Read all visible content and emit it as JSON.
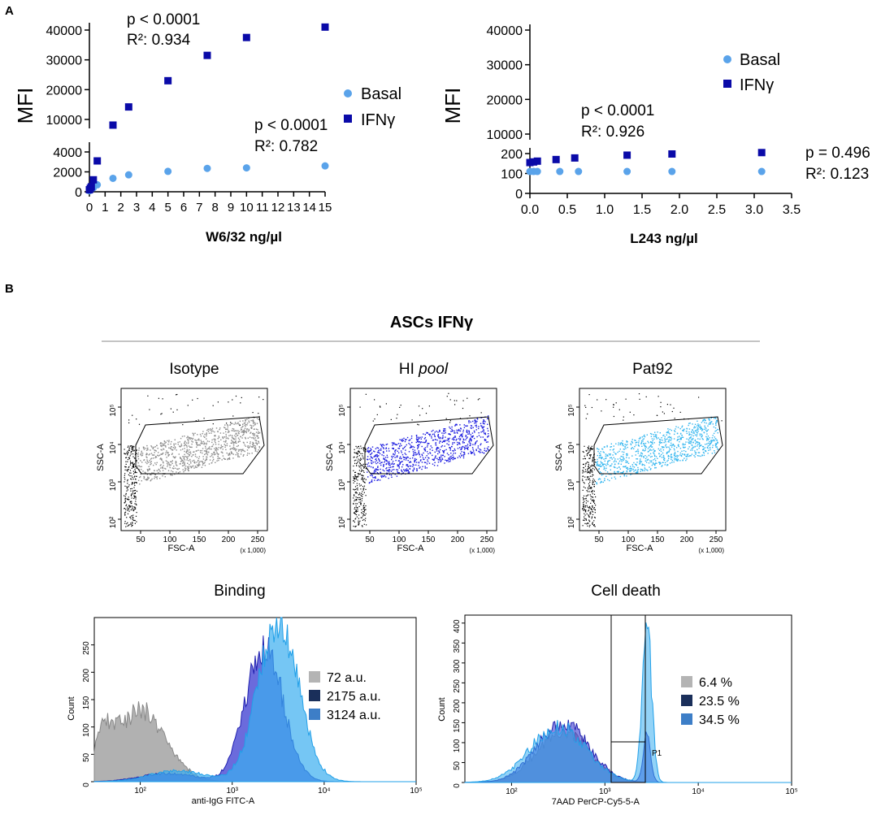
{
  "panels": {
    "a": "A",
    "b": "B"
  },
  "chart_data": [
    {
      "id": "w632",
      "type": "scatter",
      "title": "",
      "xlabel": "W6/32 ng/µl",
      "ylabel": "MFI",
      "x_ticks": [
        "0",
        "1",
        "2",
        "3",
        "4",
        "5",
        "6",
        "7",
        "8",
        "9",
        "10",
        "11",
        "12",
        "13",
        "14",
        "15"
      ],
      "y_ticks_lower": [
        "0",
        "2000",
        "4000"
      ],
      "y_ticks_upper": [
        "10000",
        "20000",
        "30000",
        "40000"
      ],
      "y_break": [
        4000,
        8000
      ],
      "xlim": [
        0,
        15
      ],
      "series": [
        {
          "name": "Basal",
          "color": "#5aa3ea",
          "marker": "circle",
          "x": [
            0,
            0.06,
            0.12,
            0.25,
            0.5,
            1.5,
            2.5,
            5,
            7.5,
            10,
            15
          ],
          "y": [
            100,
            200,
            300,
            400,
            700,
            1350,
            1700,
            2050,
            2350,
            2400,
            2600
          ]
        },
        {
          "name": "IFNγ",
          "color": "#0a0aa8",
          "marker": "square",
          "x": [
            0,
            0.06,
            0.12,
            0.25,
            0.5,
            1.5,
            2.5,
            5,
            7.5,
            10,
            15
          ],
          "y": [
            200,
            350,
            500,
            1200,
            3100,
            8100,
            14200,
            23000,
            31500,
            37500,
            41000
          ]
        }
      ],
      "annotations": {
        "ifn_p": "p < 0.0001",
        "ifn_r2": "R²: 0.934",
        "basal_p": "p < 0.0001",
        "basal_r2": "R²: 0.782"
      }
    },
    {
      "id": "l243",
      "type": "scatter",
      "title": "",
      "xlabel": "L243 ng/µl",
      "ylabel": "MFI",
      "x_ticks": [
        "0.0",
        "0.5",
        "1.0",
        "1.5",
        "2.0",
        "2.5",
        "3.0",
        "3.5"
      ],
      "y_ticks_lower": [
        "0",
        "100",
        "200"
      ],
      "y_ticks_upper": [
        "10000",
        "20000",
        "30000",
        "40000"
      ],
      "xlim": [
        0,
        3.5
      ],
      "series": [
        {
          "name": "Basal",
          "color": "#5aa3ea",
          "marker": "circle",
          "x": [
            0,
            0.05,
            0.1,
            0.4,
            0.65,
            1.3,
            1.9,
            3.1
          ],
          "y": [
            110,
            110,
            110,
            110,
            110,
            110,
            110,
            110
          ]
        },
        {
          "name": "IFNγ",
          "color": "#0a0aa8",
          "marker": "square",
          "x": [
            0,
            0.05,
            0.1,
            0.35,
            0.6,
            1.3,
            1.9,
            3.1
          ],
          "y": [
            155,
            158,
            162,
            170,
            178,
            192,
            198,
            205
          ]
        }
      ],
      "annotations": {
        "ifn_p": "p < 0.0001",
        "ifn_r2": "R²: 0.926",
        "basal_p": "p = 0.496",
        "basal_r2": "R²: 0.123"
      }
    },
    {
      "id": "flow",
      "type": "scatter",
      "group_title": "ASCs IFNγ",
      "xlabel": "FSC-A",
      "ylabel": "SSC-A",
      "x_ticks": [
        "50",
        "100",
        "150",
        "200",
        "250"
      ],
      "x_unit": "(x 1,000)",
      "y_ticks": [
        "10²",
        "10³",
        "10⁴",
        "10⁵"
      ],
      "panels": [
        {
          "title": "Isotype",
          "color": "#8c8c8c"
        },
        {
          "title_main": "HI ",
          "title_italic": "pool",
          "color": "#1a1adf"
        },
        {
          "title": "Pat92",
          "color": "#33b6ef"
        }
      ]
    },
    {
      "id": "binding",
      "type": "area",
      "title": "Binding",
      "xlabel": "anti-IgG FITC-A",
      "ylabel": "Count",
      "y_ticks": [
        "0",
        "50",
        "100",
        "150",
        "200",
        "250"
      ],
      "x_ticks": [
        "10²",
        "10³",
        "10⁴",
        "10⁵"
      ],
      "legend": [
        {
          "label": "72 a.u.",
          "color": "#b4b4b4"
        },
        {
          "label": "2175 a.u.",
          "color": "#1a2f5a"
        },
        {
          "label": "3124 a.u.",
          "color": "#3d7ec7"
        }
      ]
    },
    {
      "id": "death",
      "type": "area",
      "title": "Cell death",
      "xlabel": "7AAD PerCP-Cy5-5-A",
      "ylabel": "Count",
      "y_ticks": [
        "0",
        "50",
        "100",
        "150",
        "200",
        "250",
        "300",
        "350",
        "400"
      ],
      "x_ticks": [
        "10²",
        "10³",
        "10⁴",
        "10⁵"
      ],
      "gate_label": "P1",
      "legend": [
        {
          "label": "6.4 %",
          "color": "#b4b4b4"
        },
        {
          "label": "23.5 %",
          "color": "#1a2f5a"
        },
        {
          "label": "34.5 %",
          "color": "#3d7ec7"
        }
      ]
    }
  ]
}
